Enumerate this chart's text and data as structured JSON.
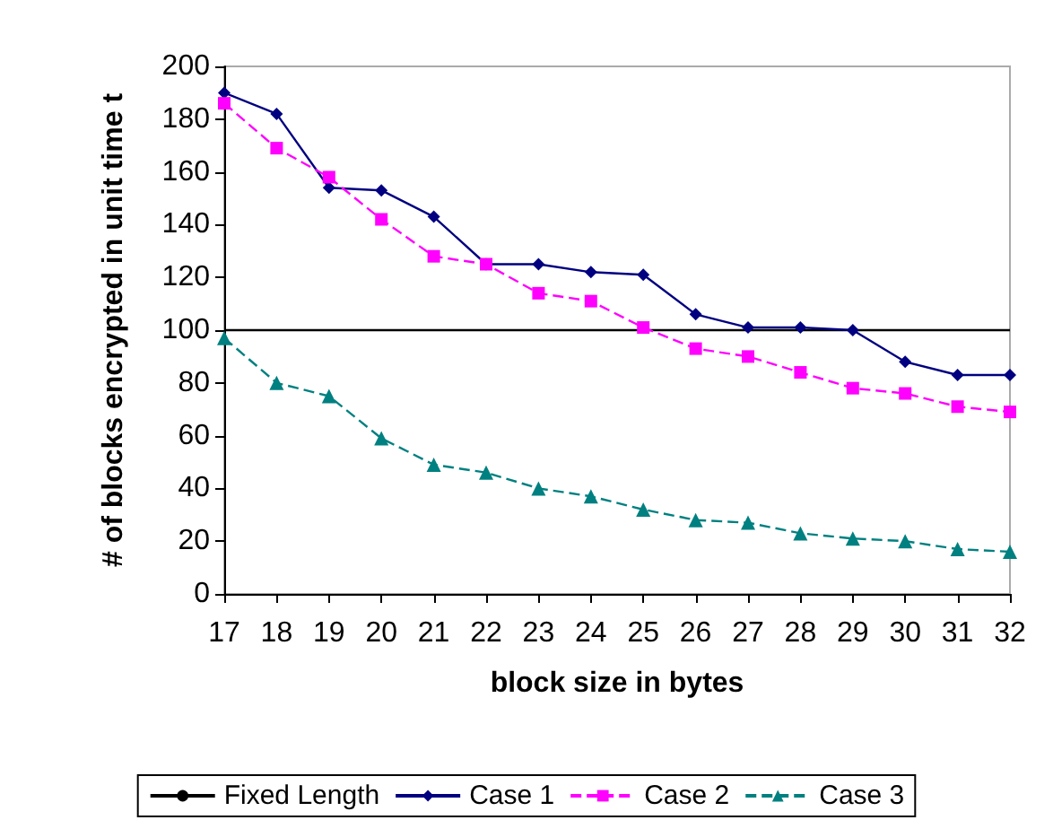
{
  "chart_data": {
    "type": "line",
    "xlabel": "block size in bytes",
    "ylabel": "# of blocks encrypted in unit time t",
    "categories": [
      "17",
      "18",
      "19",
      "20",
      "21",
      "22",
      "23",
      "24",
      "25",
      "26",
      "27",
      "28",
      "29",
      "30",
      "31",
      "32"
    ],
    "ylim": [
      0,
      200
    ],
    "yticks": [
      0,
      20,
      40,
      60,
      80,
      100,
      120,
      140,
      160,
      180,
      200
    ],
    "grid": false,
    "legend": "bottom",
    "series": [
      {
        "name": "Fixed Length",
        "color": "#000000",
        "marker": "none",
        "line_style": "solid",
        "values": [
          100,
          100,
          100,
          100,
          100,
          100,
          100,
          100,
          100,
          100,
          100,
          100,
          100,
          100,
          100,
          100
        ]
      },
      {
        "name": "Case 1",
        "color": "#000080",
        "marker": "diamond",
        "line_style": "solid",
        "values": [
          190,
          182,
          154,
          153,
          143,
          125,
          125,
          122,
          121,
          106,
          101,
          101,
          100,
          88,
          83,
          83
        ]
      },
      {
        "name": "Case 2",
        "color": "#ff00ff",
        "marker": "square",
        "line_style": "dashed",
        "values": [
          186,
          169,
          158,
          142,
          128,
          125,
          114,
          111,
          101,
          93,
          90,
          84,
          78,
          76,
          71,
          69
        ]
      },
      {
        "name": "Case 3",
        "color": "#008080",
        "marker": "triangle",
        "line_style": "dashed",
        "values": [
          97,
          80,
          75,
          59,
          49,
          46,
          40,
          37,
          32,
          28,
          27,
          23,
          21,
          20,
          17,
          16
        ]
      }
    ]
  }
}
